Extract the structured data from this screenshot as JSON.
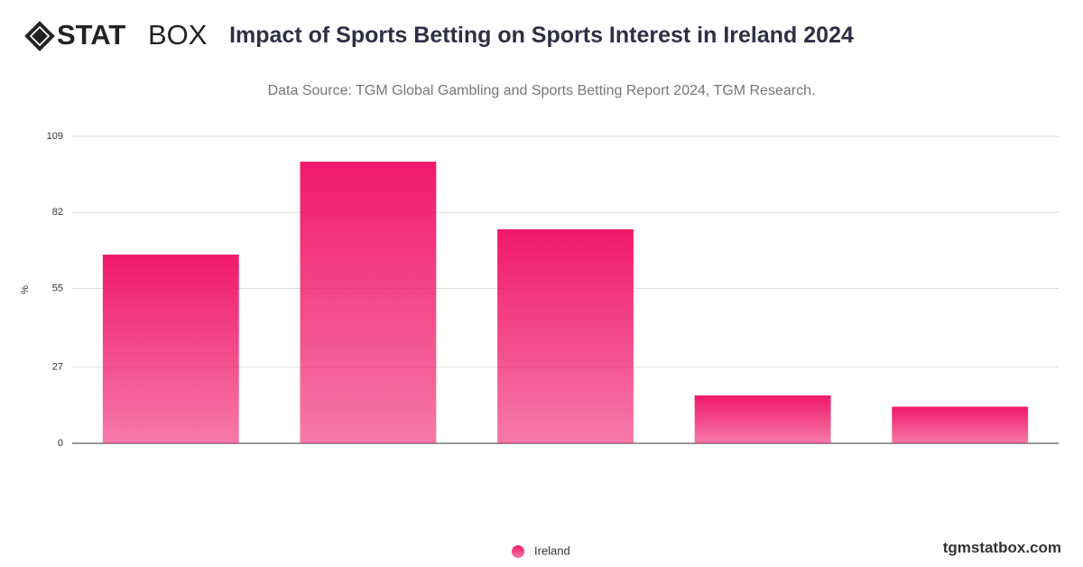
{
  "logo": {
    "bold": "STAT",
    "light": "BOX"
  },
  "footer": "tgmstatbox.com",
  "chart_data": {
    "type": "bar",
    "title": "Impact of Sports Betting on Sports Interest in Ireland 2024",
    "subtitle": "Data Source: TGM Global Gambling and Sports Betting Report 2024, TGM Research.",
    "y_label": "%",
    "categories": [
      null,
      null,
      null,
      null,
      null
    ],
    "series": [
      {
        "name": "Ireland",
        "color": "#f0196a",
        "values": [
          67,
          100,
          76,
          17,
          13
        ]
      }
    ],
    "ylim": [
      0,
      109
    ],
    "yticks": [
      0,
      27,
      55,
      82,
      109
    ],
    "grid": true
  }
}
